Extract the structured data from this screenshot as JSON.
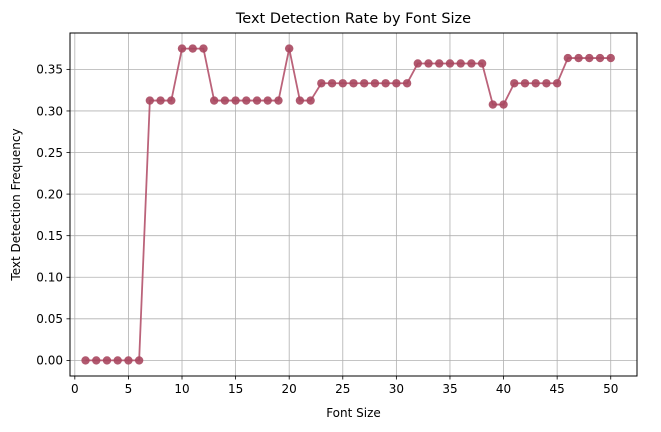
{
  "chart_data": {
    "type": "line",
    "title": "Text Detection Rate by Font Size",
    "xlabel": "Font Size",
    "ylabel": "Text Detection Frequency",
    "xlim": [
      -0.45,
      52.45
    ],
    "ylim": [
      -0.01875,
      0.39375
    ],
    "x_ticks": [
      0,
      5,
      10,
      15,
      20,
      25,
      30,
      35,
      40,
      45,
      50
    ],
    "x_tick_labels": [
      "0",
      "5",
      "10",
      "15",
      "20",
      "25",
      "30",
      "35",
      "40",
      "45",
      "50"
    ],
    "y_ticks": [
      0.0,
      0.05,
      0.1,
      0.15,
      0.2,
      0.25,
      0.3,
      0.35
    ],
    "y_tick_labels": [
      "0.00",
      "0.05",
      "0.10",
      "0.15",
      "0.20",
      "0.25",
      "0.30",
      "0.35"
    ],
    "grid": true,
    "series_color": "#b5566f",
    "marker_color": "#a8475f",
    "x": [
      1,
      2,
      3,
      4,
      5,
      6,
      7,
      8,
      9,
      10,
      11,
      12,
      13,
      14,
      15,
      16,
      17,
      18,
      19,
      20,
      21,
      22,
      23,
      24,
      25,
      26,
      27,
      28,
      29,
      30,
      31,
      32,
      33,
      34,
      35,
      36,
      37,
      38,
      39,
      40,
      41,
      42,
      43,
      44,
      45,
      46,
      47,
      48,
      49,
      50
    ],
    "y": [
      0.0,
      0.0,
      0.0,
      0.0,
      0.0,
      0.0,
      0.3125,
      0.3125,
      0.3125,
      0.375,
      0.375,
      0.375,
      0.3125,
      0.3125,
      0.3125,
      0.3125,
      0.3125,
      0.3125,
      0.3125,
      0.375,
      0.3125,
      0.3125,
      0.3333,
      0.3333,
      0.3333,
      0.3333,
      0.3333,
      0.3333,
      0.3333,
      0.3333,
      0.3333,
      0.3571,
      0.3571,
      0.3571,
      0.3571,
      0.3571,
      0.3571,
      0.3571,
      0.3077,
      0.3077,
      0.3333,
      0.3333,
      0.3333,
      0.3333,
      0.3333,
      0.3636,
      0.3636,
      0.3636,
      0.3636,
      0.3636
    ]
  }
}
